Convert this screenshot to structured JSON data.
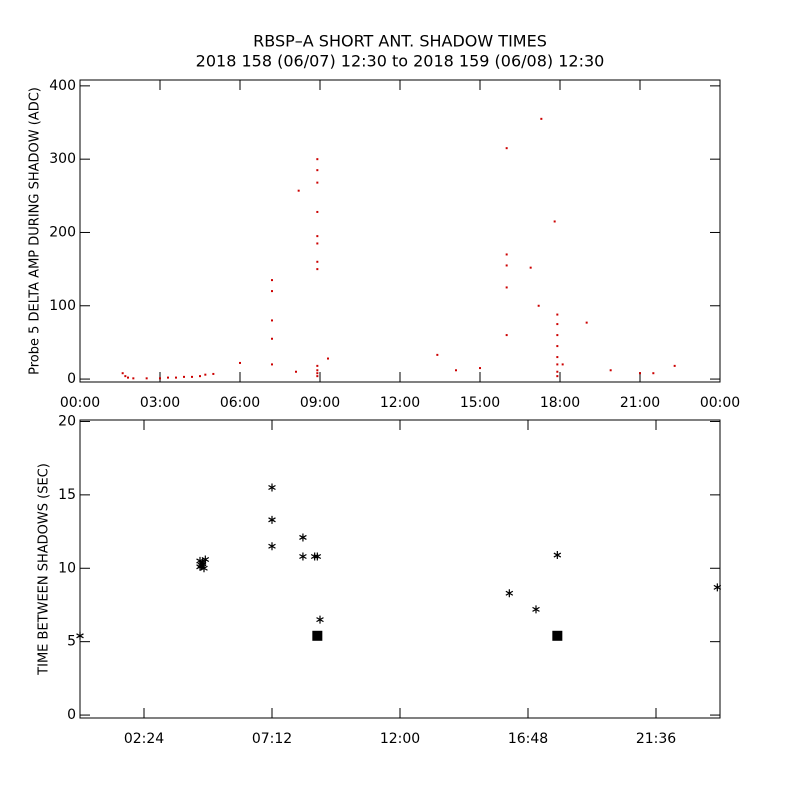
{
  "chart_data": [
    {
      "type": "scatter",
      "title": "RBSP–A SHORT ANT. SHADOW TIMES",
      "subtitle": "2018 158 (06/07) 12:30 to 2018 159 (06/08) 12:30",
      "y_label": "Probe 5 DELTA AMP DURING SHADOW (ADC)",
      "xlim": [
        0,
        24
      ],
      "ylim": [
        -4,
        408
      ],
      "xticks": [
        {
          "value": 0,
          "label": "00:00"
        },
        {
          "value": 3,
          "label": "03:00"
        },
        {
          "value": 6,
          "label": "06:00"
        },
        {
          "value": 9,
          "label": "09:00"
        },
        {
          "value": 12,
          "label": "12:00"
        },
        {
          "value": 15,
          "label": "15:00"
        },
        {
          "value": 18,
          "label": "18:00"
        },
        {
          "value": 21,
          "label": "21:00"
        },
        {
          "value": 24,
          "label": "00:00"
        }
      ],
      "yticks": [
        0,
        100,
        200,
        300,
        400
      ],
      "series": [
        {
          "color": "#cc0000",
          "marker": "dot",
          "x": [
            1.6,
            1.7,
            1.8,
            2.0,
            2.5,
            3.0,
            3.3,
            3.6,
            3.9,
            4.2,
            4.5,
            4.7,
            5.0,
            6.0,
            7.2,
            7.2,
            7.2,
            7.2,
            7.2,
            8.1,
            8.2,
            8.9,
            8.9,
            8.9,
            8.9,
            8.9,
            8.9,
            8.9,
            8.9,
            8.9,
            8.9,
            8.9,
            8.9,
            9.3,
            13.4,
            14.1,
            15.0,
            16.0,
            16.0,
            16.0,
            16.0,
            16.0,
            16.9,
            17.2,
            17.3,
            17.8,
            17.9,
            17.9,
            17.9,
            17.9,
            17.9,
            17.9,
            17.9,
            17.9,
            18.1,
            19.0,
            19.9,
            21.0,
            21.5,
            22.3
          ],
          "values": [
            8,
            4,
            2,
            1,
            1,
            1,
            2,
            2,
            3,
            3,
            4,
            6,
            7,
            22,
            135,
            120,
            80,
            55,
            20,
            10,
            257,
            300,
            285,
            268,
            228,
            195,
            185,
            160,
            150,
            18,
            12,
            8,
            4,
            28,
            33,
            12,
            15,
            315,
            170,
            155,
            125,
            60,
            152,
            100,
            355,
            215,
            88,
            75,
            60,
            45,
            30,
            20,
            10,
            4,
            20,
            77,
            12,
            8,
            8,
            18
          ]
        }
      ]
    },
    {
      "type": "scatter",
      "y_label": "TIME BETWEEN SHADOWS (SEC)",
      "xlim": [
        0,
        24
      ],
      "ylim": [
        -0.2,
        20.1
      ],
      "xticks": [
        {
          "value": 2.4,
          "label": "02:24"
        },
        {
          "value": 7.2,
          "label": "07:12"
        },
        {
          "value": 12,
          "label": "12:00"
        },
        {
          "value": 16.8,
          "label": "16:48"
        },
        {
          "value": 21.6,
          "label": "21:36"
        }
      ],
      "yticks": [
        0,
        5,
        10,
        15,
        20
      ],
      "series": [
        {
          "color": "#000000",
          "marker": "asterisk",
          "x": [
            0,
            4.5,
            4.55,
            4.6,
            4.65,
            4.7,
            4.5,
            4.6,
            7.2,
            7.2,
            7.2,
            8.36,
            8.36,
            8.8,
            8.9,
            9.0,
            16.1,
            17.1,
            17.9,
            23.9
          ],
          "values": [
            5.4,
            10.5,
            10.2,
            10.4,
            10.0,
            10.6,
            10.1,
            10.3,
            15.5,
            13.3,
            11.5,
            12.1,
            10.8,
            10.8,
            10.8,
            6.5,
            8.3,
            7.2,
            10.9,
            8.7
          ]
        },
        {
          "color": "#000000",
          "marker": "square",
          "x": [
            8.9,
            17.9
          ],
          "values": [
            5.4,
            5.4
          ]
        }
      ]
    }
  ]
}
